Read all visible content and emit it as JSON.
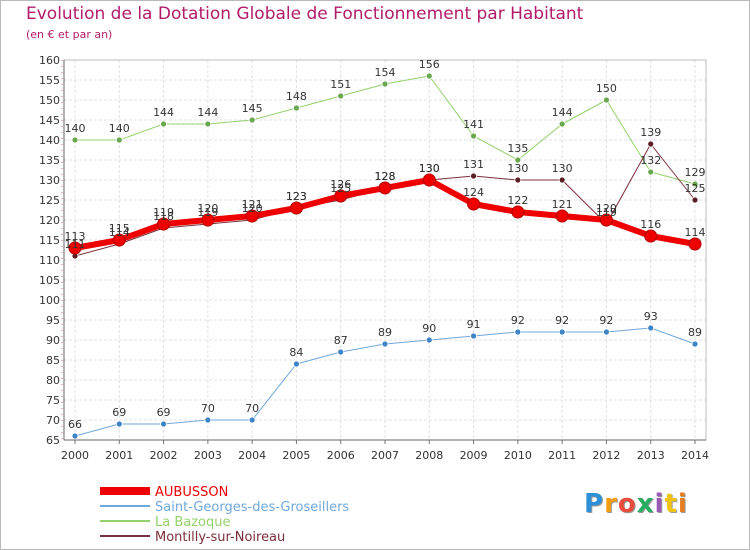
{
  "title": "Evolution de la Dotation Globale de Fonctionnement par Habitant",
  "subtitle": "(en € et par an)",
  "logo": {
    "text": "Proxiti",
    "letters": [
      "P",
      "r",
      "o",
      "x",
      "i",
      "t",
      "i"
    ],
    "colors": [
      "#2d8fd5",
      "#f39c12",
      "#e74c3c",
      "#27ae60",
      "#9b59b6",
      "#f1c40f",
      "#e67e22"
    ]
  },
  "chart_data": {
    "type": "line",
    "x": [
      2000,
      2001,
      2002,
      2003,
      2004,
      2005,
      2006,
      2007,
      2008,
      2009,
      2010,
      2011,
      2012,
      2013,
      2014
    ],
    "ylim": [
      65,
      160
    ],
    "y_ticks": [
      65,
      70,
      75,
      80,
      85,
      90,
      95,
      100,
      105,
      110,
      115,
      120,
      125,
      130,
      135,
      140,
      145,
      150,
      155,
      160
    ],
    "grid": true,
    "series": [
      {
        "name": "Saint-Georges-des-Groseillers",
        "color": "#6fa8dc",
        "marker": "#3d85c6",
        "width": 1,
        "values": [
          66,
          69,
          69,
          70,
          70,
          84,
          87,
          89,
          90,
          91,
          92,
          92,
          92,
          93,
          89
        ]
      },
      {
        "name": "La Bazoque",
        "color": "#93d16c",
        "marker": "#6aa84f",
        "width": 1,
        "values": [
          140,
          140,
          144,
          144,
          145,
          148,
          151,
          154,
          156,
          141,
          135,
          144,
          150,
          132,
          129
        ]
      },
      {
        "name": "Montilly-sur-Noireau",
        "color": "#7b2f3a",
        "marker": "#5c1f28",
        "width": 1,
        "values": [
          111,
          114,
          118,
          119,
          120,
          123,
          125,
          128,
          130,
          131,
          130,
          130,
          119,
          139,
          125
        ]
      },
      {
        "name": "AUBUSSON",
        "color": "#ee0000",
        "marker": "#ee0000",
        "width": 6,
        "values": [
          113,
          115,
          119,
          120,
          121,
          123,
          126,
          128,
          130,
          124,
          122,
          121,
          120,
          116,
          114
        ]
      }
    ],
    "legend_order": [
      "AUBUSSON",
      "Saint-Georges-des-Groseillers",
      "La Bazoque",
      "Montilly-sur-Noireau"
    ],
    "legend_position": "bottom-left"
  }
}
